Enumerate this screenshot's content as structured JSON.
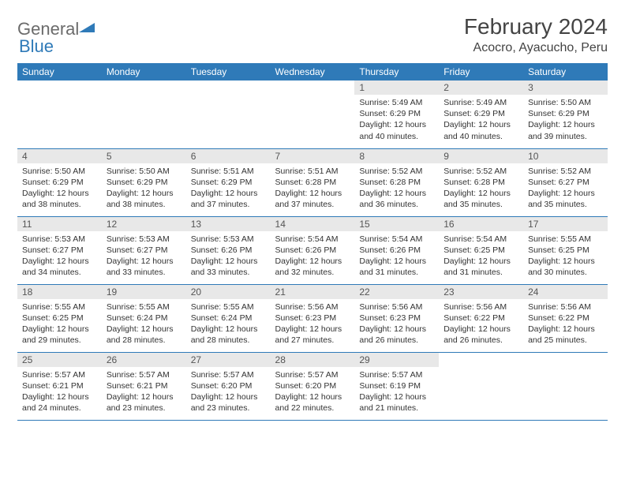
{
  "brand": {
    "name_a": "General",
    "name_b": "Blue",
    "accent": "#2f7ab8"
  },
  "title": {
    "month": "February 2024",
    "location": "Acocro, Ayacucho, Peru"
  },
  "colors": {
    "header_bg": "#2f7ab8",
    "header_text": "#ffffff",
    "daynum_bg": "#e8e8e8",
    "border": "#2f7ab8",
    "text": "#333333",
    "logo_gray": "#6b6b6b"
  },
  "day_headers": [
    "Sunday",
    "Monday",
    "Tuesday",
    "Wednesday",
    "Thursday",
    "Friday",
    "Saturday"
  ],
  "weeks": [
    [
      null,
      null,
      null,
      null,
      {
        "n": "1",
        "sunrise": "Sunrise: 5:49 AM",
        "sunset": "Sunset: 6:29 PM",
        "daylight": "Daylight: 12 hours and 40 minutes."
      },
      {
        "n": "2",
        "sunrise": "Sunrise: 5:49 AM",
        "sunset": "Sunset: 6:29 PM",
        "daylight": "Daylight: 12 hours and 40 minutes."
      },
      {
        "n": "3",
        "sunrise": "Sunrise: 5:50 AM",
        "sunset": "Sunset: 6:29 PM",
        "daylight": "Daylight: 12 hours and 39 minutes."
      }
    ],
    [
      {
        "n": "4",
        "sunrise": "Sunrise: 5:50 AM",
        "sunset": "Sunset: 6:29 PM",
        "daylight": "Daylight: 12 hours and 38 minutes."
      },
      {
        "n": "5",
        "sunrise": "Sunrise: 5:50 AM",
        "sunset": "Sunset: 6:29 PM",
        "daylight": "Daylight: 12 hours and 38 minutes."
      },
      {
        "n": "6",
        "sunrise": "Sunrise: 5:51 AM",
        "sunset": "Sunset: 6:29 PM",
        "daylight": "Daylight: 12 hours and 37 minutes."
      },
      {
        "n": "7",
        "sunrise": "Sunrise: 5:51 AM",
        "sunset": "Sunset: 6:28 PM",
        "daylight": "Daylight: 12 hours and 37 minutes."
      },
      {
        "n": "8",
        "sunrise": "Sunrise: 5:52 AM",
        "sunset": "Sunset: 6:28 PM",
        "daylight": "Daylight: 12 hours and 36 minutes."
      },
      {
        "n": "9",
        "sunrise": "Sunrise: 5:52 AM",
        "sunset": "Sunset: 6:28 PM",
        "daylight": "Daylight: 12 hours and 35 minutes."
      },
      {
        "n": "10",
        "sunrise": "Sunrise: 5:52 AM",
        "sunset": "Sunset: 6:27 PM",
        "daylight": "Daylight: 12 hours and 35 minutes."
      }
    ],
    [
      {
        "n": "11",
        "sunrise": "Sunrise: 5:53 AM",
        "sunset": "Sunset: 6:27 PM",
        "daylight": "Daylight: 12 hours and 34 minutes."
      },
      {
        "n": "12",
        "sunrise": "Sunrise: 5:53 AM",
        "sunset": "Sunset: 6:27 PM",
        "daylight": "Daylight: 12 hours and 33 minutes."
      },
      {
        "n": "13",
        "sunrise": "Sunrise: 5:53 AM",
        "sunset": "Sunset: 6:26 PM",
        "daylight": "Daylight: 12 hours and 33 minutes."
      },
      {
        "n": "14",
        "sunrise": "Sunrise: 5:54 AM",
        "sunset": "Sunset: 6:26 PM",
        "daylight": "Daylight: 12 hours and 32 minutes."
      },
      {
        "n": "15",
        "sunrise": "Sunrise: 5:54 AM",
        "sunset": "Sunset: 6:26 PM",
        "daylight": "Daylight: 12 hours and 31 minutes."
      },
      {
        "n": "16",
        "sunrise": "Sunrise: 5:54 AM",
        "sunset": "Sunset: 6:25 PM",
        "daylight": "Daylight: 12 hours and 31 minutes."
      },
      {
        "n": "17",
        "sunrise": "Sunrise: 5:55 AM",
        "sunset": "Sunset: 6:25 PM",
        "daylight": "Daylight: 12 hours and 30 minutes."
      }
    ],
    [
      {
        "n": "18",
        "sunrise": "Sunrise: 5:55 AM",
        "sunset": "Sunset: 6:25 PM",
        "daylight": "Daylight: 12 hours and 29 minutes."
      },
      {
        "n": "19",
        "sunrise": "Sunrise: 5:55 AM",
        "sunset": "Sunset: 6:24 PM",
        "daylight": "Daylight: 12 hours and 28 minutes."
      },
      {
        "n": "20",
        "sunrise": "Sunrise: 5:55 AM",
        "sunset": "Sunset: 6:24 PM",
        "daylight": "Daylight: 12 hours and 28 minutes."
      },
      {
        "n": "21",
        "sunrise": "Sunrise: 5:56 AM",
        "sunset": "Sunset: 6:23 PM",
        "daylight": "Daylight: 12 hours and 27 minutes."
      },
      {
        "n": "22",
        "sunrise": "Sunrise: 5:56 AM",
        "sunset": "Sunset: 6:23 PM",
        "daylight": "Daylight: 12 hours and 26 minutes."
      },
      {
        "n": "23",
        "sunrise": "Sunrise: 5:56 AM",
        "sunset": "Sunset: 6:22 PM",
        "daylight": "Daylight: 12 hours and 26 minutes."
      },
      {
        "n": "24",
        "sunrise": "Sunrise: 5:56 AM",
        "sunset": "Sunset: 6:22 PM",
        "daylight": "Daylight: 12 hours and 25 minutes."
      }
    ],
    [
      {
        "n": "25",
        "sunrise": "Sunrise: 5:57 AM",
        "sunset": "Sunset: 6:21 PM",
        "daylight": "Daylight: 12 hours and 24 minutes."
      },
      {
        "n": "26",
        "sunrise": "Sunrise: 5:57 AM",
        "sunset": "Sunset: 6:21 PM",
        "daylight": "Daylight: 12 hours and 23 minutes."
      },
      {
        "n": "27",
        "sunrise": "Sunrise: 5:57 AM",
        "sunset": "Sunset: 6:20 PM",
        "daylight": "Daylight: 12 hours and 23 minutes."
      },
      {
        "n": "28",
        "sunrise": "Sunrise: 5:57 AM",
        "sunset": "Sunset: 6:20 PM",
        "daylight": "Daylight: 12 hours and 22 minutes."
      },
      {
        "n": "29",
        "sunrise": "Sunrise: 5:57 AM",
        "sunset": "Sunset: 6:19 PM",
        "daylight": "Daylight: 12 hours and 21 minutes."
      },
      null,
      null
    ]
  ]
}
